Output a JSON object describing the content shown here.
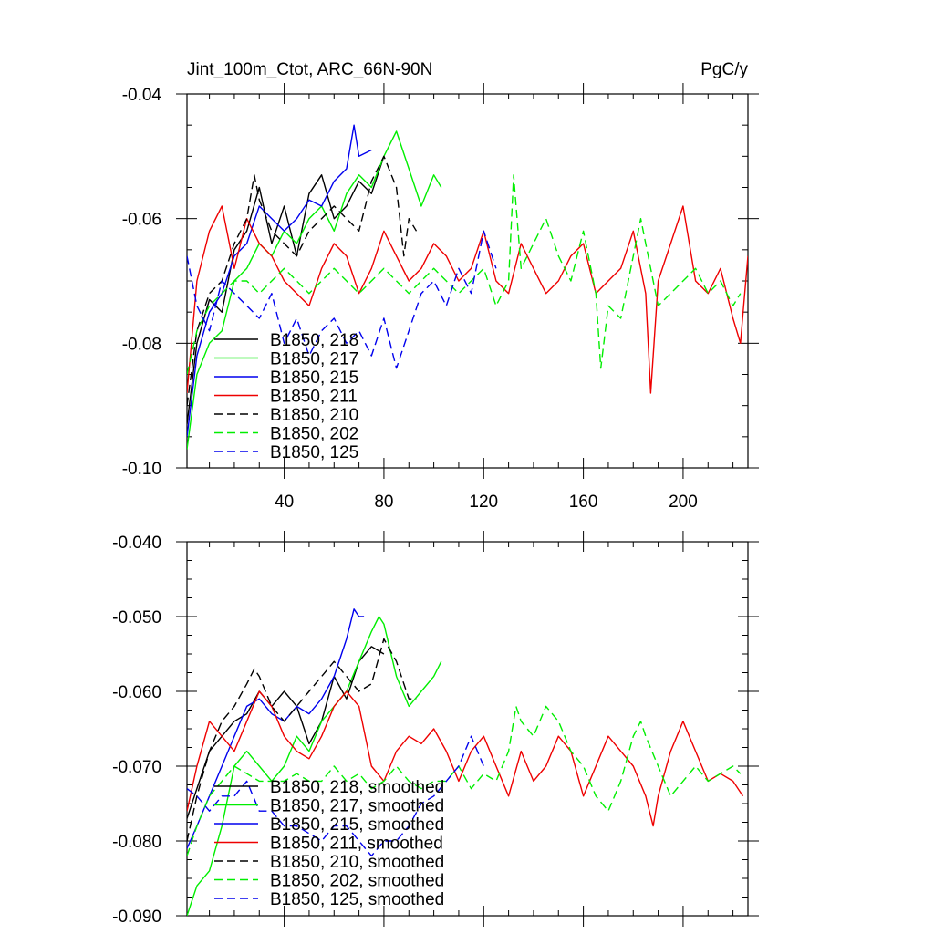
{
  "page": {
    "title": "Jint_100m_Ctot, ARC_66N-90N",
    "units": "PgC/y"
  },
  "colors": {
    "black": "#000000",
    "green": "#00ee00",
    "blue": "#0000ee",
    "red": "#ee0000"
  },
  "chart_data": [
    {
      "type": "line",
      "title": "Jint_100m_Ctot, ARC_66N-90N",
      "units_label": "PgC/y",
      "xlim": [
        1,
        226
      ],
      "ylim": [
        -0.1,
        -0.04
      ],
      "xticks": [
        40,
        80,
        120,
        160,
        200
      ],
      "xtick_labels": [
        "40",
        "80",
        "120",
        "160",
        "200"
      ],
      "yticks": [
        -0.04,
        -0.06,
        -0.08,
        -0.1
      ],
      "ytick_labels": [
        "-0.04",
        "-0.06",
        "-0.08",
        "-0.10"
      ],
      "legend_position": "lower-left",
      "series": [
        {
          "name": "B1850, 218",
          "color": "black",
          "dash": "solid",
          "x": [
            1,
            5,
            10,
            15,
            20,
            25,
            30,
            35,
            40,
            45,
            50,
            55,
            60,
            65,
            70,
            75,
            80
          ],
          "y": [
            -0.093,
            -0.08,
            -0.073,
            -0.075,
            -0.065,
            -0.062,
            -0.055,
            -0.064,
            -0.058,
            -0.066,
            -0.056,
            -0.053,
            -0.06,
            -0.058,
            -0.054,
            -0.056,
            -0.05
          ]
        },
        {
          "name": "B1850, 217",
          "color": "green",
          "dash": "solid",
          "x": [
            1,
            5,
            10,
            15,
            20,
            25,
            30,
            35,
            40,
            45,
            50,
            55,
            60,
            65,
            70,
            75,
            80,
            85,
            90,
            95,
            100,
            103
          ],
          "y": [
            -0.097,
            -0.085,
            -0.08,
            -0.078,
            -0.07,
            -0.068,
            -0.064,
            -0.066,
            -0.062,
            -0.064,
            -0.06,
            -0.058,
            -0.062,
            -0.056,
            -0.053,
            -0.055,
            -0.05,
            -0.046,
            -0.052,
            -0.058,
            -0.053,
            -0.055
          ]
        },
        {
          "name": "B1850, 215",
          "color": "blue",
          "dash": "solid",
          "x": [
            1,
            5,
            10,
            15,
            20,
            25,
            30,
            35,
            40,
            45,
            50,
            55,
            60,
            65,
            68,
            70,
            75
          ],
          "y": [
            -0.095,
            -0.082,
            -0.075,
            -0.072,
            -0.066,
            -0.064,
            -0.058,
            -0.06,
            -0.062,
            -0.06,
            -0.057,
            -0.058,
            -0.054,
            -0.052,
            -0.045,
            -0.05,
            -0.049
          ]
        },
        {
          "name": "B1850, 211",
          "color": "red",
          "dash": "solid",
          "x": [
            1,
            5,
            10,
            15,
            20,
            25,
            30,
            35,
            40,
            45,
            50,
            55,
            60,
            65,
            70,
            75,
            80,
            85,
            90,
            95,
            100,
            105,
            110,
            115,
            120,
            125,
            130,
            135,
            140,
            145,
            150,
            155,
            160,
            165,
            170,
            175,
            180,
            185,
            187,
            190,
            195,
            200,
            205,
            210,
            215,
            220,
            223,
            226
          ],
          "y": [
            -0.088,
            -0.07,
            -0.062,
            -0.058,
            -0.068,
            -0.06,
            -0.064,
            -0.066,
            -0.07,
            -0.072,
            -0.074,
            -0.068,
            -0.064,
            -0.066,
            -0.072,
            -0.068,
            -0.062,
            -0.066,
            -0.07,
            -0.068,
            -0.064,
            -0.066,
            -0.07,
            -0.068,
            -0.062,
            -0.07,
            -0.072,
            -0.064,
            -0.068,
            -0.072,
            -0.07,
            -0.066,
            -0.064,
            -0.072,
            -0.07,
            -0.068,
            -0.062,
            -0.072,
            -0.088,
            -0.07,
            -0.064,
            -0.058,
            -0.07,
            -0.072,
            -0.068,
            -0.076,
            -0.08,
            -0.066
          ]
        },
        {
          "name": "B1850, 210",
          "color": "black",
          "dash": "dashed",
          "x": [
            1,
            5,
            10,
            15,
            20,
            25,
            28,
            30,
            35,
            40,
            45,
            50,
            55,
            60,
            65,
            70,
            75,
            80,
            85,
            88,
            90,
            93
          ],
          "y": [
            -0.09,
            -0.078,
            -0.072,
            -0.07,
            -0.064,
            -0.06,
            -0.053,
            -0.057,
            -0.062,
            -0.064,
            -0.066,
            -0.062,
            -0.06,
            -0.058,
            -0.06,
            -0.062,
            -0.054,
            -0.05,
            -0.055,
            -0.066,
            -0.06,
            -0.062
          ]
        },
        {
          "name": "B1850, 202",
          "color": "green",
          "dash": "dashed",
          "x": [
            1,
            5,
            10,
            15,
            20,
            25,
            30,
            35,
            40,
            45,
            50,
            55,
            60,
            65,
            70,
            75,
            80,
            85,
            90,
            95,
            100,
            105,
            110,
            115,
            120,
            125,
            130,
            132,
            135,
            140,
            145,
            150,
            155,
            160,
            165,
            167,
            170,
            175,
            180,
            183,
            185,
            190,
            195,
            200,
            205,
            210,
            215,
            220,
            223
          ],
          "y": [
            -0.085,
            -0.078,
            -0.074,
            -0.072,
            -0.07,
            -0.07,
            -0.072,
            -0.07,
            -0.068,
            -0.07,
            -0.072,
            -0.07,
            -0.068,
            -0.07,
            -0.072,
            -0.07,
            -0.068,
            -0.07,
            -0.072,
            -0.07,
            -0.068,
            -0.07,
            -0.072,
            -0.07,
            -0.068,
            -0.074,
            -0.07,
            -0.053,
            -0.068,
            -0.064,
            -0.06,
            -0.066,
            -0.07,
            -0.062,
            -0.072,
            -0.084,
            -0.074,
            -0.076,
            -0.066,
            -0.06,
            -0.064,
            -0.074,
            -0.072,
            -0.07,
            -0.068,
            -0.072,
            -0.07,
            -0.074,
            -0.072
          ]
        },
        {
          "name": "B1850, 125",
          "color": "blue",
          "dash": "dashed",
          "x": [
            1,
            5,
            10,
            15,
            20,
            25,
            30,
            35,
            40,
            45,
            50,
            55,
            60,
            65,
            70,
            75,
            80,
            85,
            90,
            95,
            100,
            105,
            110,
            115,
            120,
            125
          ],
          "y": [
            -0.066,
            -0.074,
            -0.078,
            -0.07,
            -0.072,
            -0.074,
            -0.076,
            -0.072,
            -0.08,
            -0.076,
            -0.082,
            -0.078,
            -0.076,
            -0.08,
            -0.078,
            -0.082,
            -0.076,
            -0.084,
            -0.078,
            -0.072,
            -0.07,
            -0.074,
            -0.068,
            -0.072,
            -0.062,
            -0.068
          ]
        }
      ]
    },
    {
      "type": "line",
      "title": "",
      "xlim": [
        1,
        226
      ],
      "ylim": [
        -0.09,
        -0.04
      ],
      "xticks": [
        40,
        80,
        120,
        160,
        200
      ],
      "xtick_labels": [],
      "yticks": [
        -0.04,
        -0.05,
        -0.06,
        -0.07,
        -0.08,
        -0.09
      ],
      "ytick_labels": [
        "-0.040",
        "-0.050",
        "-0.060",
        "-0.070",
        "-0.080",
        "-0.090"
      ],
      "legend_position": "lower-left",
      "series": [
        {
          "name": "B1850, 218, smoothed",
          "color": "black",
          "dash": "solid",
          "x": [
            1,
            5,
            10,
            15,
            20,
            25,
            30,
            35,
            40,
            45,
            50,
            55,
            60,
            65,
            70,
            75,
            80
          ],
          "y": [
            -0.077,
            -0.073,
            -0.068,
            -0.066,
            -0.064,
            -0.063,
            -0.06,
            -0.062,
            -0.06,
            -0.062,
            -0.067,
            -0.064,
            -0.058,
            -0.061,
            -0.056,
            -0.054,
            -0.055
          ]
        },
        {
          "name": "B1850, 217, smoothed",
          "color": "green",
          "dash": "solid",
          "x": [
            1,
            5,
            10,
            15,
            20,
            25,
            30,
            35,
            40,
            45,
            50,
            55,
            60,
            65,
            70,
            75,
            78,
            80,
            85,
            90,
            95,
            100,
            103
          ],
          "y": [
            -0.09,
            -0.086,
            -0.084,
            -0.078,
            -0.07,
            -0.068,
            -0.07,
            -0.072,
            -0.07,
            -0.066,
            -0.068,
            -0.064,
            -0.062,
            -0.06,
            -0.056,
            -0.052,
            -0.05,
            -0.051,
            -0.058,
            -0.062,
            -0.06,
            -0.058,
            -0.056
          ]
        },
        {
          "name": "B1850, 215, smoothed",
          "color": "blue",
          "dash": "solid",
          "x": [
            1,
            5,
            10,
            15,
            20,
            25,
            30,
            35,
            40,
            45,
            50,
            55,
            60,
            65,
            68,
            70,
            72
          ],
          "y": [
            -0.081,
            -0.078,
            -0.074,
            -0.07,
            -0.066,
            -0.062,
            -0.061,
            -0.063,
            -0.064,
            -0.062,
            -0.063,
            -0.061,
            -0.058,
            -0.053,
            -0.049,
            -0.05,
            -0.05
          ]
        },
        {
          "name": "B1850, 211, smoothed",
          "color": "red",
          "dash": "solid",
          "x": [
            1,
            5,
            10,
            15,
            20,
            25,
            30,
            35,
            40,
            45,
            50,
            55,
            60,
            65,
            70,
            75,
            80,
            85,
            90,
            95,
            100,
            105,
            110,
            115,
            120,
            125,
            130,
            135,
            140,
            145,
            150,
            155,
            160,
            165,
            170,
            175,
            180,
            185,
            188,
            190,
            195,
            200,
            205,
            210,
            215,
            220,
            224
          ],
          "y": [
            -0.076,
            -0.07,
            -0.064,
            -0.066,
            -0.068,
            -0.064,
            -0.06,
            -0.062,
            -0.066,
            -0.068,
            -0.069,
            -0.066,
            -0.062,
            -0.06,
            -0.062,
            -0.07,
            -0.072,
            -0.068,
            -0.066,
            -0.067,
            -0.065,
            -0.068,
            -0.072,
            -0.068,
            -0.066,
            -0.07,
            -0.074,
            -0.068,
            -0.072,
            -0.07,
            -0.066,
            -0.068,
            -0.074,
            -0.07,
            -0.066,
            -0.068,
            -0.07,
            -0.074,
            -0.078,
            -0.074,
            -0.068,
            -0.064,
            -0.068,
            -0.072,
            -0.071,
            -0.072,
            -0.074
          ]
        },
        {
          "name": "B1850, 210, smoothed",
          "color": "black",
          "dash": "dashed",
          "x": [
            1,
            5,
            10,
            15,
            20,
            25,
            28,
            30,
            35,
            40,
            45,
            50,
            55,
            60,
            65,
            70,
            75,
            80,
            85,
            90,
            93
          ],
          "y": [
            -0.08,
            -0.074,
            -0.068,
            -0.064,
            -0.062,
            -0.059,
            -0.057,
            -0.058,
            -0.062,
            -0.064,
            -0.062,
            -0.06,
            -0.058,
            -0.056,
            -0.058,
            -0.06,
            -0.059,
            -0.053,
            -0.056,
            -0.061,
            -0.061
          ]
        },
        {
          "name": "B1850, 202, smoothed",
          "color": "green",
          "dash": "dashed",
          "x": [
            1,
            5,
            10,
            15,
            20,
            25,
            30,
            35,
            40,
            45,
            50,
            55,
            60,
            65,
            70,
            75,
            80,
            85,
            90,
            95,
            100,
            105,
            110,
            115,
            120,
            125,
            130,
            133,
            135,
            140,
            145,
            150,
            155,
            160,
            165,
            170,
            175,
            180,
            183,
            185,
            190,
            195,
            200,
            205,
            210,
            215,
            220,
            223
          ],
          "y": [
            -0.082,
            -0.078,
            -0.074,
            -0.072,
            -0.07,
            -0.071,
            -0.072,
            -0.072,
            -0.072,
            -0.071,
            -0.072,
            -0.072,
            -0.07,
            -0.072,
            -0.071,
            -0.073,
            -0.072,
            -0.07,
            -0.072,
            -0.073,
            -0.072,
            -0.072,
            -0.07,
            -0.073,
            -0.071,
            -0.072,
            -0.068,
            -0.062,
            -0.064,
            -0.066,
            -0.062,
            -0.064,
            -0.068,
            -0.07,
            -0.074,
            -0.076,
            -0.072,
            -0.066,
            -0.064,
            -0.066,
            -0.07,
            -0.074,
            -0.072,
            -0.07,
            -0.072,
            -0.071,
            -0.07,
            -0.071
          ]
        },
        {
          "name": "B1850, 125, smoothed",
          "color": "blue",
          "dash": "dashed",
          "x": [
            1,
            5,
            10,
            15,
            20,
            25,
            30,
            35,
            40,
            45,
            50,
            55,
            60,
            65,
            70,
            75,
            80,
            85,
            90,
            95,
            100,
            105,
            110,
            115,
            120
          ],
          "y": [
            -0.073,
            -0.074,
            -0.076,
            -0.074,
            -0.074,
            -0.072,
            -0.076,
            -0.076,
            -0.078,
            -0.078,
            -0.079,
            -0.08,
            -0.078,
            -0.078,
            -0.08,
            -0.082,
            -0.08,
            -0.08,
            -0.078,
            -0.075,
            -0.074,
            -0.072,
            -0.07,
            -0.066,
            -0.07
          ]
        }
      ]
    }
  ]
}
